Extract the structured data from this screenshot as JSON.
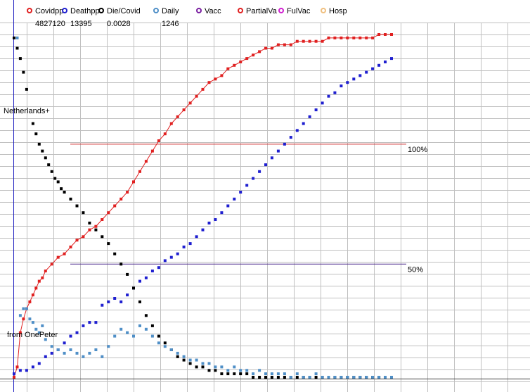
{
  "legend": [
    {
      "label": "Covidpp",
      "color": "#e02020",
      "value": "4827120"
    },
    {
      "label": "Deathpp",
      "color": "#1f1fd0",
      "value": "13395"
    },
    {
      "label": "Die/Covid",
      "color": "#000000",
      "value": "0.0028"
    },
    {
      "label": "Daily",
      "color": "#4f8fc7",
      "value": "1246"
    },
    {
      "label": "Vacc",
      "color": "#7a1fa0",
      "value": ""
    },
    {
      "label": "PartialVa",
      "color": "#e02020",
      "value": ""
    },
    {
      "label": "FulVac",
      "color": "#d020d0",
      "value": ""
    },
    {
      "label": "Hosp",
      "color": "#f0c080",
      "value": ""
    }
  ],
  "labels": {
    "country": "Netherlands+",
    "source": "from OnePeter",
    "ref100": "100%",
    "ref50": "50%"
  },
  "colors": {
    "grid": "#c0c0c0",
    "ref100": "#d03030",
    "ref50": "#503090",
    "axis": "#2020c0"
  },
  "chart_data": {
    "type": "scatter",
    "x_count": 120,
    "y_range": [
      0,
      1
    ],
    "grid": true,
    "legend_placement": "top",
    "reference_lines": [
      {
        "label": "100%",
        "y": 0.68
      },
      {
        "label": "50%",
        "y": 0.33
      }
    ],
    "series": [
      {
        "name": "Covidpp",
        "color": "#e02020",
        "connected": true,
        "points": [
          [
            0,
            0.0
          ],
          [
            1,
            0.03
          ],
          [
            2,
            0.13
          ],
          [
            3,
            0.17
          ],
          [
            4,
            0.2
          ],
          [
            5,
            0.22
          ],
          [
            6,
            0.24
          ],
          [
            7,
            0.26
          ],
          [
            8,
            0.28
          ],
          [
            9,
            0.29
          ],
          [
            10,
            0.31
          ],
          [
            12,
            0.33
          ],
          [
            14,
            0.35
          ],
          [
            16,
            0.36
          ],
          [
            18,
            0.38
          ],
          [
            20,
            0.4
          ],
          [
            22,
            0.41
          ],
          [
            24,
            0.43
          ],
          [
            26,
            0.44
          ],
          [
            28,
            0.46
          ],
          [
            30,
            0.48
          ],
          [
            32,
            0.5
          ],
          [
            34,
            0.52
          ],
          [
            36,
            0.54
          ],
          [
            38,
            0.57
          ],
          [
            40,
            0.6
          ],
          [
            42,
            0.63
          ],
          [
            44,
            0.66
          ],
          [
            46,
            0.69
          ],
          [
            48,
            0.71
          ],
          [
            50,
            0.74
          ],
          [
            52,
            0.76
          ],
          [
            54,
            0.78
          ],
          [
            56,
            0.8
          ],
          [
            58,
            0.82
          ],
          [
            60,
            0.84
          ],
          [
            62,
            0.86
          ],
          [
            64,
            0.87
          ],
          [
            66,
            0.88
          ],
          [
            68,
            0.9
          ],
          [
            70,
            0.91
          ],
          [
            72,
            0.92
          ],
          [
            74,
            0.93
          ],
          [
            76,
            0.94
          ],
          [
            78,
            0.95
          ],
          [
            80,
            0.96
          ],
          [
            82,
            0.96
          ],
          [
            84,
            0.97
          ],
          [
            86,
            0.97
          ],
          [
            88,
            0.97
          ],
          [
            90,
            0.98
          ],
          [
            92,
            0.98
          ],
          [
            94,
            0.98
          ],
          [
            96,
            0.98
          ],
          [
            98,
            0.98
          ],
          [
            100,
            0.99
          ],
          [
            102,
            0.99
          ],
          [
            104,
            0.99
          ],
          [
            106,
            0.99
          ],
          [
            108,
            0.99
          ],
          [
            110,
            0.99
          ],
          [
            112,
            0.99
          ],
          [
            114,
            0.99
          ],
          [
            116,
            1.0
          ],
          [
            118,
            1.0
          ],
          [
            120,
            1.0
          ]
        ]
      },
      {
        "name": "Deathpp",
        "color": "#1f1fd0",
        "connected": false,
        "points": [
          [
            0,
            0.01
          ],
          [
            2,
            0.02
          ],
          [
            4,
            0.02
          ],
          [
            6,
            0.03
          ],
          [
            8,
            0.04
          ],
          [
            10,
            0.06
          ],
          [
            12,
            0.07
          ],
          [
            14,
            0.08
          ],
          [
            16,
            0.1
          ],
          [
            18,
            0.12
          ],
          [
            20,
            0.13
          ],
          [
            22,
            0.15
          ],
          [
            24,
            0.16
          ],
          [
            26,
            0.16
          ],
          [
            28,
            0.21
          ],
          [
            30,
            0.22
          ],
          [
            32,
            0.23
          ],
          [
            34,
            0.22
          ],
          [
            36,
            0.24
          ],
          [
            38,
            0.26
          ],
          [
            40,
            0.28
          ],
          [
            42,
            0.29
          ],
          [
            44,
            0.31
          ],
          [
            46,
            0.32
          ],
          [
            48,
            0.34
          ],
          [
            50,
            0.35
          ],
          [
            52,
            0.36
          ],
          [
            54,
            0.38
          ],
          [
            56,
            0.39
          ],
          [
            58,
            0.41
          ],
          [
            60,
            0.43
          ],
          [
            62,
            0.45
          ],
          [
            64,
            0.46
          ],
          [
            66,
            0.48
          ],
          [
            68,
            0.5
          ],
          [
            70,
            0.52
          ],
          [
            72,
            0.54
          ],
          [
            74,
            0.56
          ],
          [
            76,
            0.58
          ],
          [
            78,
            0.6
          ],
          [
            80,
            0.62
          ],
          [
            82,
            0.64
          ],
          [
            84,
            0.66
          ],
          [
            86,
            0.68
          ],
          [
            88,
            0.7
          ],
          [
            90,
            0.72
          ],
          [
            92,
            0.74
          ],
          [
            94,
            0.76
          ],
          [
            96,
            0.78
          ],
          [
            98,
            0.8
          ],
          [
            100,
            0.82
          ],
          [
            102,
            0.83
          ],
          [
            104,
            0.85
          ],
          [
            106,
            0.86
          ],
          [
            108,
            0.87
          ],
          [
            110,
            0.88
          ],
          [
            112,
            0.89
          ],
          [
            114,
            0.9
          ],
          [
            116,
            0.91
          ],
          [
            118,
            0.92
          ],
          [
            120,
            0.93
          ]
        ]
      },
      {
        "name": "Die/Covid",
        "color": "#000000",
        "connected": false,
        "points": [
          [
            0,
            0.99
          ],
          [
            1,
            0.96
          ],
          [
            2,
            0.93
          ],
          [
            3,
            0.89
          ],
          [
            4,
            0.84
          ],
          [
            6,
            0.74
          ],
          [
            7,
            0.71
          ],
          [
            8,
            0.68
          ],
          [
            9,
            0.66
          ],
          [
            10,
            0.64
          ],
          [
            11,
            0.62
          ],
          [
            12,
            0.6
          ],
          [
            13,
            0.58
          ],
          [
            14,
            0.57
          ],
          [
            15,
            0.55
          ],
          [
            16,
            0.54
          ],
          [
            18,
            0.52
          ],
          [
            20,
            0.5
          ],
          [
            22,
            0.48
          ],
          [
            24,
            0.45
          ],
          [
            26,
            0.43
          ],
          [
            28,
            0.41
          ],
          [
            30,
            0.39
          ],
          [
            32,
            0.36
          ],
          [
            34,
            0.33
          ],
          [
            36,
            0.3
          ],
          [
            38,
            0.26
          ],
          [
            40,
            0.22
          ],
          [
            42,
            0.18
          ],
          [
            44,
            0.15
          ],
          [
            46,
            0.12
          ],
          [
            48,
            0.1
          ],
          [
            50,
            0.08
          ],
          [
            52,
            0.06
          ],
          [
            54,
            0.05
          ],
          [
            56,
            0.04
          ],
          [
            58,
            0.03
          ],
          [
            60,
            0.03
          ],
          [
            62,
            0.02
          ],
          [
            64,
            0.02
          ],
          [
            66,
            0.01
          ],
          [
            68,
            0.01
          ],
          [
            70,
            0.01
          ],
          [
            72,
            0.01
          ],
          [
            74,
            0.01
          ],
          [
            76,
            0.0
          ],
          [
            78,
            0.0
          ],
          [
            80,
            0.0
          ],
          [
            82,
            0.0
          ],
          [
            84,
            0.0
          ],
          [
            86,
            0.0
          ],
          [
            88,
            0.0
          ],
          [
            90,
            0.0
          ],
          [
            92,
            0.0
          ],
          [
            94,
            0.0
          ],
          [
            96,
            0.0
          ],
          [
            98,
            0.0
          ],
          [
            100,
            0.0
          ],
          [
            102,
            0.0
          ],
          [
            104,
            0.0
          ],
          [
            106,
            0.0
          ],
          [
            108,
            0.0
          ],
          [
            110,
            0.0
          ],
          [
            112,
            0.0
          ],
          [
            114,
            0.0
          ],
          [
            116,
            0.0
          ],
          [
            118,
            0.0
          ],
          [
            120,
            0.0
          ]
        ]
      },
      {
        "name": "Daily",
        "color": "#4f8fc7",
        "connected": false,
        "points": [
          [
            1,
            0.99
          ],
          [
            2,
            0.18
          ],
          [
            3,
            0.2
          ],
          [
            4,
            0.2
          ],
          [
            5,
            0.17
          ],
          [
            6,
            0.16
          ],
          [
            7,
            0.14
          ],
          [
            8,
            0.13
          ],
          [
            9,
            0.15
          ],
          [
            10,
            0.11
          ],
          [
            12,
            0.09
          ],
          [
            14,
            0.08
          ],
          [
            16,
            0.07
          ],
          [
            18,
            0.08
          ],
          [
            20,
            0.07
          ],
          [
            22,
            0.06
          ],
          [
            24,
            0.07
          ],
          [
            26,
            0.08
          ],
          [
            28,
            0.06
          ],
          [
            30,
            0.09
          ],
          [
            32,
            0.12
          ],
          [
            34,
            0.14
          ],
          [
            36,
            0.13
          ],
          [
            38,
            0.12
          ],
          [
            40,
            0.15
          ],
          [
            42,
            0.14
          ],
          [
            44,
            0.12
          ],
          [
            46,
            0.1
          ],
          [
            48,
            0.09
          ],
          [
            50,
            0.08
          ],
          [
            52,
            0.07
          ],
          [
            54,
            0.06
          ],
          [
            56,
            0.05
          ],
          [
            58,
            0.05
          ],
          [
            60,
            0.04
          ],
          [
            62,
            0.04
          ],
          [
            64,
            0.03
          ],
          [
            66,
            0.03
          ],
          [
            68,
            0.02
          ],
          [
            70,
            0.03
          ],
          [
            72,
            0.02
          ],
          [
            74,
            0.02
          ],
          [
            76,
            0.01
          ],
          [
            78,
            0.02
          ],
          [
            80,
            0.01
          ],
          [
            82,
            0.01
          ],
          [
            84,
            0.01
          ],
          [
            86,
            0.01
          ],
          [
            88,
            0.0
          ],
          [
            90,
            0.01
          ],
          [
            92,
            0.0
          ],
          [
            94,
            0.0
          ],
          [
            96,
            0.01
          ],
          [
            98,
            0.0
          ],
          [
            100,
            0.0
          ],
          [
            102,
            0.0
          ],
          [
            104,
            0.0
          ],
          [
            106,
            0.0
          ],
          [
            108,
            0.0
          ],
          [
            110,
            0.0
          ],
          [
            112,
            0.0
          ],
          [
            114,
            0.0
          ],
          [
            116,
            0.0
          ],
          [
            118,
            0.0
          ],
          [
            120,
            0.0
          ]
        ]
      }
    ]
  }
}
